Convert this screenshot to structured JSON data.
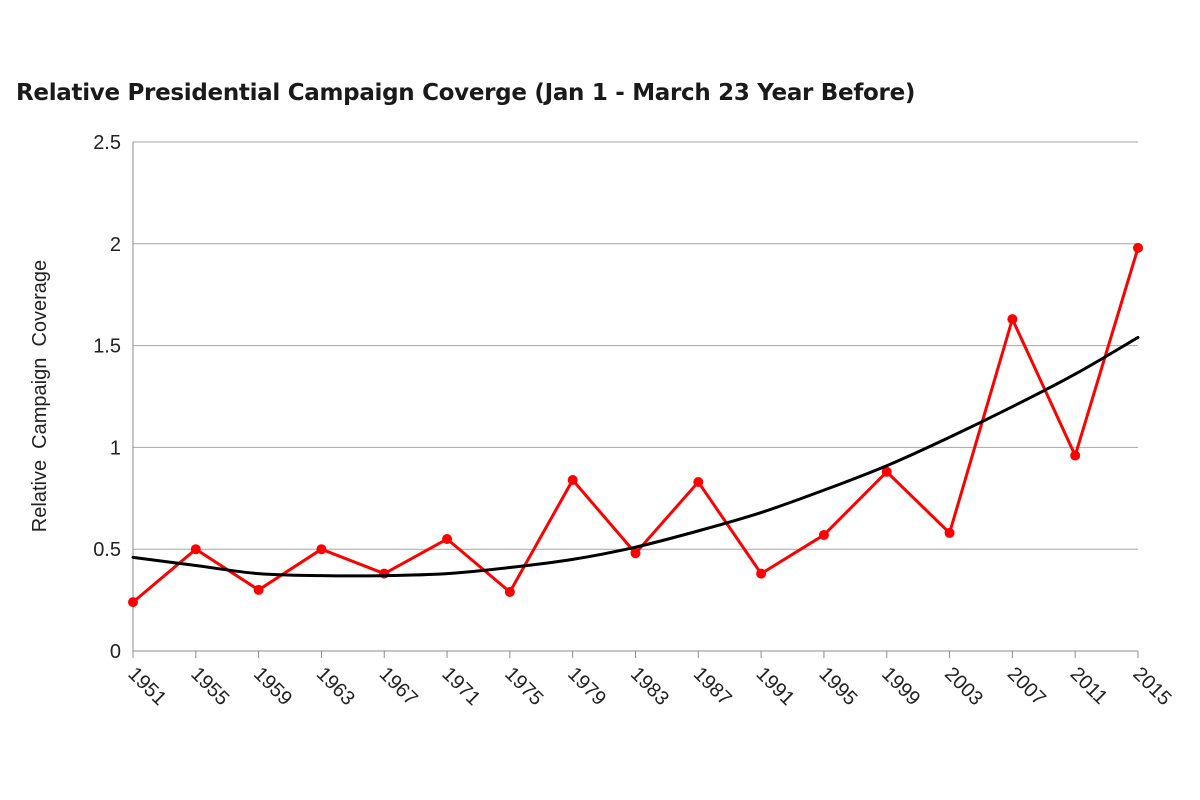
{
  "chart_data": {
    "type": "line",
    "title": "Relative Presidential Campaign Coverge (Jan 1 - March 23 Year Before)",
    "xlabel": "",
    "ylabel": "Relative  Campaign  Coverage",
    "categories": [
      "1951",
      "1955",
      "1959",
      "1963",
      "1967",
      "1971",
      "1975",
      "1979",
      "1983",
      "1987",
      "1991",
      "1995",
      "1999",
      "2003",
      "2007",
      "2011",
      "2015"
    ],
    "ylim": [
      0,
      2.5
    ],
    "yticks": [
      "0",
      "0.5",
      "1",
      "1.5",
      "2",
      "2.5"
    ],
    "grid": true,
    "series": [
      {
        "type": "line",
        "color": "#ff0000",
        "markers": true,
        "values": [
          0.24,
          0.5,
          0.3,
          0.5,
          0.38,
          0.55,
          0.29,
          0.84,
          0.48,
          0.83,
          0.38,
          0.57,
          0.88,
          0.58,
          1.63,
          0.96,
          1.98
        ]
      },
      {
        "type": "trendline",
        "color": "#000000",
        "markers": false,
        "values": [
          0.46,
          0.42,
          0.38,
          0.37,
          0.37,
          0.38,
          0.41,
          0.45,
          0.51,
          0.59,
          0.68,
          0.79,
          0.91,
          1.05,
          1.2,
          1.36,
          1.54
        ]
      }
    ]
  }
}
